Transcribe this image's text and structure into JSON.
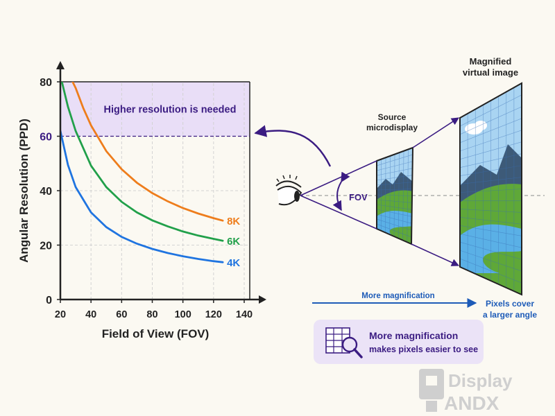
{
  "chart_data": {
    "type": "line",
    "title": "",
    "xlabel": "Field of View (FOV)",
    "ylabel": "Angular Resolution (PPD)",
    "xlim": [
      20,
      140
    ],
    "ylim": [
      0,
      80
    ],
    "x_ticks": [
      20,
      40,
      60,
      80,
      100,
      120,
      140
    ],
    "y_ticks": [
      0,
      20,
      40,
      60,
      80
    ],
    "grid": true,
    "threshold": {
      "y": 60,
      "label": "Higher resolution is needed",
      "color": "#3b1c82"
    },
    "series": [
      {
        "name": "8K",
        "color": "#ee7d1c",
        "x": [
          28,
          30,
          35,
          40,
          50,
          60,
          70,
          80,
          90,
          100,
          110,
          120,
          126
        ],
        "y": [
          80,
          77.7,
          70.3,
          64,
          54.5,
          47.9,
          42.9,
          39.1,
          36.1,
          33.6,
          31.6,
          29.9,
          29
        ]
      },
      {
        "name": "6K",
        "color": "#21a04a",
        "x": [
          21,
          25,
          30,
          40,
          50,
          60,
          70,
          80,
          90,
          100,
          110,
          120,
          126
        ],
        "y": [
          80,
          70.8,
          61.9,
          49.2,
          41.3,
          35.9,
          32,
          29.1,
          26.9,
          25,
          23.5,
          22.3,
          21.6
        ]
      },
      {
        "name": "4K",
        "color": "#1f74e0",
        "x": [
          20,
          25,
          30,
          40,
          50,
          60,
          70,
          80,
          90,
          100,
          110,
          120,
          126
        ],
        "y": [
          62,
          49.4,
          41.3,
          32,
          26.6,
          23,
          20.5,
          18.6,
          17.1,
          15.9,
          14.9,
          14.1,
          13.7
        ]
      }
    ]
  },
  "diagram": {
    "fov_label": "FOV",
    "source_label": [
      "Source",
      "microdisplay"
    ],
    "virtual_label": [
      "Magnified",
      "virtual image"
    ],
    "magnification_label": "More magnification",
    "pixels_label": [
      "Pixels cover",
      "a larger angle"
    ]
  },
  "callout": {
    "line1": "More magnification",
    "line2": "makes pixels easier to see"
  },
  "watermark": [
    "Display",
    "ANDX"
  ],
  "colors": {
    "purple": "#3b1c82",
    "highlight": "#e9def7",
    "axis": "#222222",
    "sky": "#a9d4f2",
    "mountain": "#3d5a78",
    "grass": "#5fa838",
    "water": "#5ab0e6"
  }
}
